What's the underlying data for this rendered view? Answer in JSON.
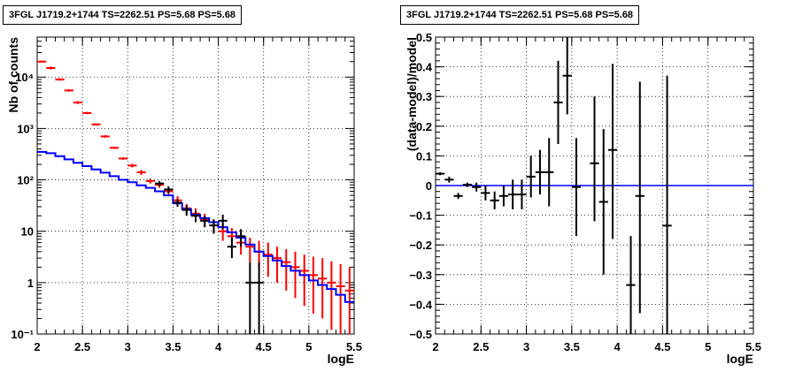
{
  "chart_data": [
    {
      "type": "scatter",
      "title": "3FGL J1719.2+1744 TS=2262.51 PS=5.68 PS=5.68",
      "xlabel": "logE",
      "ylabel": "Nb of counts",
      "xlim": [
        2,
        5.5
      ],
      "ylim": [
        0.1,
        60000
      ],
      "yscale": "log",
      "grid": true,
      "xticks": [
        "2",
        "2.5",
        "3",
        "3.5",
        "4",
        "4.5",
        "5",
        "5.5"
      ],
      "yticks": [
        "10⁻¹",
        "1",
        "10",
        "10²",
        "10³",
        "10⁴"
      ],
      "colors": {
        "model_total": "#ff0000",
        "source_model": "#0000ff",
        "data": "#000000"
      },
      "model_total": {
        "x": [
          2.05,
          2.15,
          2.25,
          2.35,
          2.45,
          2.55,
          2.65,
          2.75,
          2.85,
          2.95,
          3.05,
          3.15,
          3.25,
          3.35,
          3.45,
          3.55,
          3.65,
          3.75,
          3.85,
          3.95,
          4.05,
          4.15,
          4.25,
          4.35,
          4.45,
          4.55,
          4.65,
          4.75,
          4.85,
          4.95,
          5.05,
          5.15,
          5.25,
          5.35,
          5.45
        ],
        "y": [
          20000,
          15000,
          9000,
          5500,
          3200,
          2000,
          1200,
          700,
          420,
          260,
          190,
          140,
          95,
          80,
          60,
          40,
          28,
          22,
          17,
          13,
          10,
          8,
          6,
          5,
          4,
          3.5,
          3,
          2.5,
          2,
          1.7,
          1.4,
          1.2,
          1,
          0.85,
          0.7
        ],
        "ylow": [
          19000,
          14000,
          8500,
          5200,
          3000,
          1900,
          1150,
          660,
          400,
          245,
          175,
          125,
          85,
          70,
          50,
          32,
          22,
          16,
          12,
          9,
          6.5,
          5,
          3.5,
          2.5,
          1.8,
          1.3,
          1,
          0.7,
          0.5,
          0.35,
          0.25,
          0.2,
          0.12,
          0.1,
          0.1
        ],
        "yhigh": [
          21000,
          16000,
          9500,
          5800,
          3400,
          2100,
          1250,
          740,
          440,
          275,
          205,
          155,
          105,
          90,
          70,
          48,
          34,
          28,
          22,
          17,
          14,
          11.5,
          9,
          7.5,
          6.5,
          6,
          5,
          4.5,
          4,
          3.5,
          3.2,
          3,
          2.6,
          2.3,
          2
        ]
      },
      "source_model": {
        "x": [
          2.05,
          2.15,
          2.25,
          2.35,
          2.45,
          2.55,
          2.65,
          2.75,
          2.85,
          2.95,
          3.05,
          3.15,
          3.25,
          3.35,
          3.45,
          3.55,
          3.65,
          3.75,
          3.85,
          3.95,
          4.05,
          4.15,
          4.25,
          4.35,
          4.45,
          4.55,
          4.65,
          4.75,
          4.85,
          4.95,
          5.05,
          5.15,
          5.25,
          5.35,
          5.45
        ],
        "y": [
          350,
          330,
          290,
          250,
          215,
          185,
          160,
          138,
          118,
          100,
          90,
          78,
          70,
          60,
          50,
          35,
          27,
          21,
          18,
          15,
          12,
          9.5,
          7.5,
          5.5,
          4,
          3.3,
          2.7,
          2.1,
          1.7,
          1.4,
          1.1,
          0.9,
          0.75,
          0.58,
          0.42
        ]
      },
      "data": {
        "x": [
          3.35,
          3.45,
          3.55,
          3.65,
          3.75,
          3.85,
          3.95,
          4.05,
          4.15,
          4.25,
          4.35,
          4.45
        ],
        "y": [
          85,
          65,
          36,
          26,
          20,
          16,
          13,
          16,
          5,
          8,
          1,
          1
        ],
        "ylow": [
          75,
          55,
          30,
          20,
          15,
          12,
          9,
          11,
          3,
          5,
          0.1,
          0.1
        ],
        "yhigh": [
          95,
          75,
          42,
          32,
          25,
          20,
          17,
          21,
          7.5,
          11,
          2.5,
          2.5
        ]
      }
    },
    {
      "type": "scatter",
      "title": "3FGL J1719.2+1744 TS=2262.51 PS=5.68 PS=5.68",
      "xlabel": "logE",
      "ylabel": "(data-model)/model",
      "xlim": [
        2,
        5.5
      ],
      "ylim": [
        -0.5,
        0.5
      ],
      "grid": true,
      "xticks": [
        "2",
        "2.5",
        "3",
        "3.5",
        "4",
        "4.5",
        "5",
        "5.5"
      ],
      "yticks": [
        "−0.5",
        "−0.4",
        "−0.3",
        "−0.2",
        "−0.1",
        "0",
        "0.1",
        "0.2",
        "0.3",
        "0.4",
        "0.5"
      ],
      "colors": {
        "residual": "#0000ff",
        "data": "#000000"
      },
      "data": {
        "x": [
          2.05,
          2.15,
          2.25,
          2.35,
          2.45,
          2.55,
          2.65,
          2.75,
          2.85,
          2.95,
          3.05,
          3.15,
          3.25,
          3.35,
          3.45,
          3.55,
          3.65,
          3.75,
          3.85,
          3.95,
          4.15,
          4.25,
          4.55
        ],
        "y": [
          0.04,
          0.02,
          -0.035,
          0.003,
          -0.005,
          -0.025,
          -0.05,
          -0.035,
          -0.03,
          -0.03,
          0.03,
          0.045,
          0.045,
          0.28,
          0.37,
          -0.005,
          null,
          0.075,
          -0.055,
          0.12,
          -0.335,
          -0.035,
          -0.135
        ],
        "ylow": [
          0.035,
          0.01,
          -0.045,
          -0.005,
          -0.02,
          -0.05,
          -0.08,
          -0.07,
          -0.08,
          -0.08,
          -0.04,
          -0.03,
          -0.07,
          0.14,
          0.24,
          -0.17,
          null,
          -0.12,
          -0.3,
          -0.18,
          -0.5,
          -0.43,
          -0.5
        ],
        "yhigh": [
          0.045,
          0.03,
          -0.025,
          0.01,
          0.01,
          0.0,
          -0.02,
          0.0,
          0.02,
          0.02,
          0.1,
          0.12,
          0.16,
          0.42,
          0.5,
          0.16,
          null,
          0.3,
          0.19,
          0.41,
          -0.17,
          0.35,
          0.37
        ]
      }
    }
  ]
}
